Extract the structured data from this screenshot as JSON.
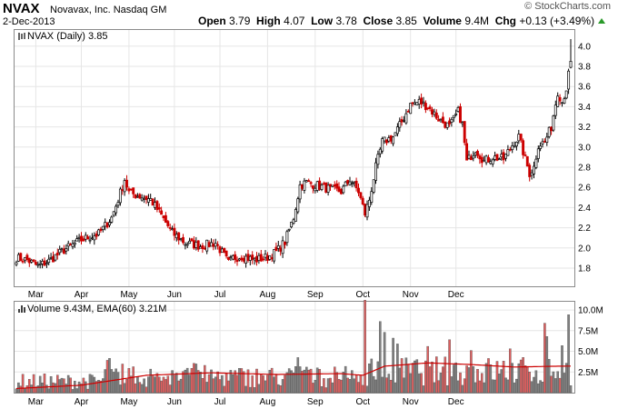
{
  "header": {
    "symbol": "NVAX",
    "name": "Novavax, Inc.  Nasdaq GM",
    "date": "2-Dec-2013",
    "copyright": "© StockCharts.com",
    "open_label": "Open",
    "open": "3.79",
    "high_label": "High",
    "high": "4.07",
    "low_label": "Low",
    "low": "3.78",
    "close_label": "Close",
    "close": "3.85",
    "volume_label": "Volume",
    "volume": "9.4M",
    "chg_label": "Chg",
    "chg": "+0.13 (+3.49%)"
  },
  "colors": {
    "up": "#000000",
    "down": "#cc0000",
    "vol_up": "#808080",
    "vol_down": "#e06060",
    "ema": "#cc0000",
    "grid": "#e6e6e6",
    "chg_arrow": "#2a9a2a"
  },
  "chart_data": [
    {
      "type": "candlestick",
      "title": "NVAX (Daily) 3.85",
      "ylim": [
        1.62,
        4.16
      ],
      "yticks": [
        "1.8",
        "2.0",
        "2.2",
        "2.4",
        "2.6",
        "2.8",
        "3.0",
        "3.2",
        "3.4",
        "3.6",
        "3.8",
        "4.0"
      ],
      "x_labels": [
        "Mar",
        "Apr",
        "May",
        "Jun",
        "Jul",
        "Aug",
        "Sep",
        "Oct",
        "Nov",
        "Dec"
      ],
      "anchors": [
        [
          0,
          1.9
        ],
        [
          5,
          1.88
        ],
        [
          10,
          1.82
        ],
        [
          15,
          1.87
        ],
        [
          22,
          1.98
        ],
        [
          30,
          2.08
        ],
        [
          38,
          2.14
        ],
        [
          44,
          2.3
        ],
        [
          47,
          2.48
        ],
        [
          50,
          2.68
        ],
        [
          52,
          2.55
        ],
        [
          56,
          2.52
        ],
        [
          62,
          2.48
        ],
        [
          67,
          2.32
        ],
        [
          72,
          2.15
        ],
        [
          78,
          2.05
        ],
        [
          85,
          2.02
        ],
        [
          92,
          2.05
        ],
        [
          96,
          1.92
        ],
        [
          98,
          1.85
        ],
        [
          100,
          1.9
        ],
        [
          104,
          1.92
        ],
        [
          110,
          1.88
        ],
        [
          116,
          1.91
        ],
        [
          120,
          1.96
        ],
        [
          124,
          2.06
        ],
        [
          128,
          2.3
        ],
        [
          131,
          2.62
        ],
        [
          134,
          2.65
        ],
        [
          139,
          2.62
        ],
        [
          145,
          2.58
        ],
        [
          150,
          2.56
        ],
        [
          154,
          2.68
        ],
        [
          158,
          2.56
        ],
        [
          161,
          2.34
        ],
        [
          163,
          2.48
        ],
        [
          166,
          2.8
        ],
        [
          169,
          3.05
        ],
        [
          174,
          3.1
        ],
        [
          178,
          3.25
        ],
        [
          182,
          3.42
        ],
        [
          186,
          3.45
        ],
        [
          190,
          3.4
        ],
        [
          195,
          3.28
        ],
        [
          200,
          3.2
        ],
        [
          204,
          3.35
        ],
        [
          206,
          3.22
        ],
        [
          208,
          2.85
        ],
        [
          212,
          2.98
        ],
        [
          216,
          2.86
        ],
        [
          220,
          2.9
        ],
        [
          225,
          2.88
        ],
        [
          229,
          3.02
        ],
        [
          232,
          3.1
        ],
        [
          235,
          2.88
        ],
        [
          237,
          2.74
        ],
        [
          239,
          2.8
        ],
        [
          241,
          3.02
        ],
        [
          244,
          3.05
        ],
        [
          247,
          3.2
        ],
        [
          250,
          3.55
        ],
        [
          252,
          3.45
        ],
        [
          254,
          3.58
        ],
        [
          256,
          3.85
        ]
      ]
    },
    {
      "type": "bar",
      "title": "Volume 9.43M, EMA(60) 3.21M",
      "ylim": [
        0,
        11000000
      ],
      "yticks": [
        "2.5M",
        "5.0M",
        "7.5M",
        "10.0M"
      ],
      "x_labels": [
        "Mar",
        "Apr",
        "May",
        "Jun",
        "Jul",
        "Aug",
        "Sep",
        "Oct",
        "Nov",
        "Dec"
      ],
      "ema_anchors": [
        [
          0,
          0.5
        ],
        [
          30,
          0.9
        ],
        [
          60,
          2.1
        ],
        [
          90,
          2.4
        ],
        [
          120,
          2.2
        ],
        [
          150,
          2.3
        ],
        [
          160,
          2.1
        ],
        [
          170,
          3.2
        ],
        [
          190,
          3.6
        ],
        [
          210,
          3.4
        ],
        [
          230,
          3.1
        ],
        [
          250,
          3.2
        ],
        [
          256,
          3.21
        ]
      ]
    }
  ]
}
